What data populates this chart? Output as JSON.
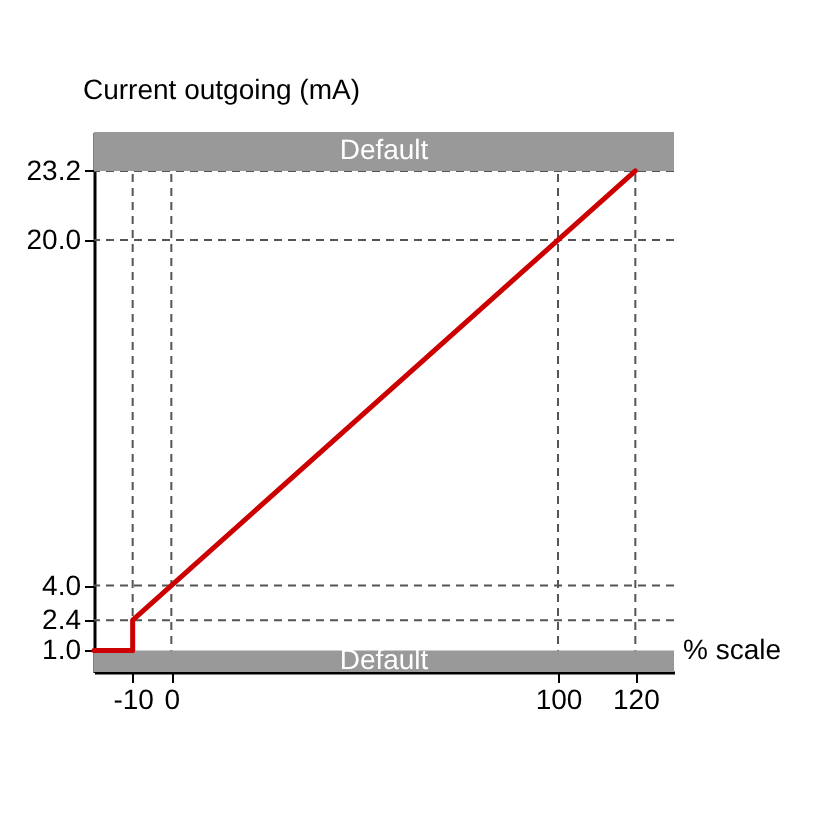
{
  "chart_data": {
    "type": "line",
    "xlabel": "% scale",
    "ylabel": "Current outgoing (mA)",
    "series": [
      {
        "color": "#cc0000",
        "x": [
          -20,
          -10,
          -10,
          120
        ],
        "values": [
          1.0,
          1.0,
          2.4,
          23.2
        ]
      }
    ],
    "xlim": [
      -20,
      130
    ],
    "ylim": [
      0,
      25
    ],
    "xticks": [
      -10,
      0,
      100,
      120
    ],
    "yticks": [
      {
        "value": 1,
        "label": "1.0"
      },
      {
        "value": 2.4,
        "label": "2.4"
      },
      {
        "value": 4,
        "label": "4.0"
      },
      {
        "value": 20,
        "label": "20.0"
      },
      {
        "value": 23.2,
        "label": "23.2"
      }
    ],
    "bands": [
      {
        "axis": "y",
        "from": 23.2,
        "to": 25,
        "label": "Default",
        "color": "#999999"
      },
      {
        "axis": "y",
        "from": 0,
        "to": 1.0,
        "label": "Default",
        "color": "#999999"
      }
    ],
    "ref_lines": [
      {
        "axis": "x",
        "value": -10,
        "line_style": "dashed",
        "color": "#555555"
      },
      {
        "axis": "x",
        "value": 0,
        "line_style": "dashed",
        "color": "#555555"
      },
      {
        "axis": "x",
        "value": 100,
        "line_style": "dashed",
        "color": "#555555"
      },
      {
        "axis": "x",
        "value": 120,
        "line_style": "dashed",
        "color": "#555555"
      },
      {
        "axis": "y",
        "value": 2.4,
        "line_style": "dashed",
        "color": "#555555"
      },
      {
        "axis": "y",
        "value": 4,
        "line_style": "dashed",
        "color": "#555555"
      },
      {
        "axis": "y",
        "value": 20,
        "line_style": "dashed",
        "color": "#555555"
      },
      {
        "axis": "y",
        "value": 23.2,
        "line_style": "dashed",
        "color": "#555555"
      }
    ],
    "grid": false,
    "marker": "none",
    "line_style": "solid"
  }
}
